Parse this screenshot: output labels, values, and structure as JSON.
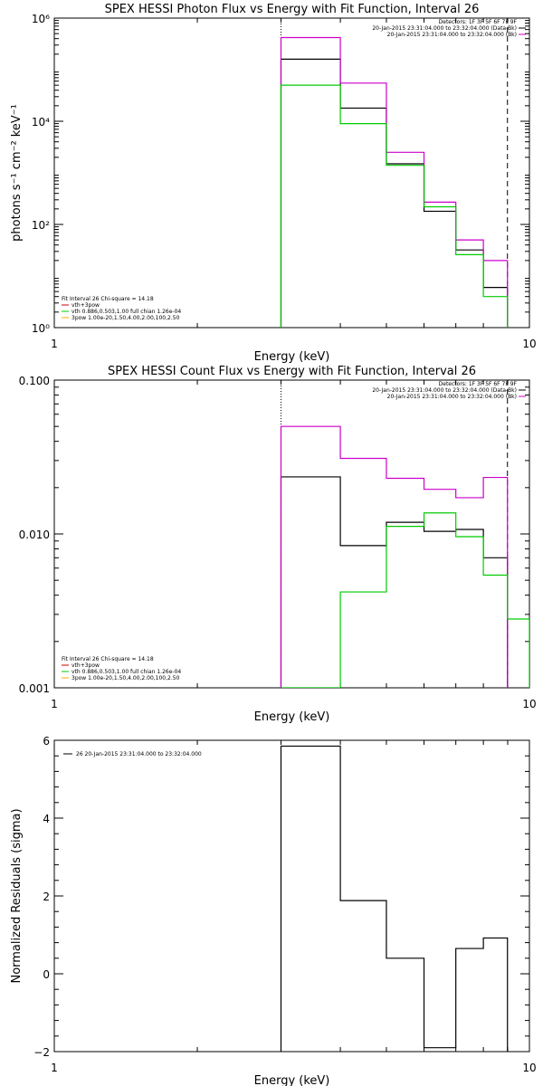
{
  "chart_data": [
    {
      "type": "line",
      "step": true,
      "title": "SPEX HESSI Photon Flux vs Energy with Fit Function, Interval 26",
      "xlabel": "Energy (keV)",
      "ylabel": "photons s⁻¹ cm⁻² keV⁻¹",
      "x_scale": "log",
      "y_scale": "log",
      "xlim": [
        1,
        10
      ],
      "ylim": [
        1,
        1000000
      ],
      "x_ticks": [
        {
          "v": 1,
          "label": "1"
        },
        {
          "v": 10,
          "label": "10"
        }
      ],
      "y_ticks": [
        {
          "v": 1,
          "label": "10⁰"
        },
        {
          "v": 100,
          "label": "10²"
        },
        {
          "v": 10000,
          "label": "10⁴"
        },
        {
          "v": 1000000,
          "label": "10⁶"
        }
      ],
      "vlines": [
        {
          "x": 3.0,
          "style": "dotted"
        },
        {
          "x": 8.99,
          "style": "dashed"
        }
      ],
      "info_lines": [
        "Detectors: 1F 3F 5F 6F 7F 9F",
        "20-Jan-2015 23:31:04.000 to 23:32:04.000 (Data-Bk)",
        "20-Jan-2015 23:31:04.000 to 23:32:04.000 (Bk)"
      ],
      "fit_info": [
        "Fit Interval 26   Chi-square = 14.18",
        "vth+3pow",
        "vth 0.886,0.503,1.00  full chian 1.26e-04",
        "3pow 1.00e-20,1.50,4.00,2.00,100,2.50"
      ],
      "series": [
        {
          "color": "#000000",
          "edges": [
            3.0,
            4.0,
            5.0,
            6.0,
            7.0,
            8.0,
            8.99
          ],
          "values": [
            160000,
            18000,
            1500,
            180,
            32,
            6
          ]
        },
        {
          "color": "#cc00cc",
          "edges": [
            3.0,
            4.0,
            5.0,
            6.0,
            7.0,
            8.0,
            8.99
          ],
          "values": [
            420000,
            55000,
            2500,
            270,
            50,
            20
          ]
        },
        {
          "color": "#00cc00",
          "edges": [
            3.0,
            4.0,
            5.0,
            6.0,
            7.0,
            8.0,
            8.99
          ],
          "values": [
            50000,
            9000,
            1400,
            220,
            26,
            4
          ]
        }
      ]
    },
    {
      "type": "line",
      "step": true,
      "title": "SPEX HESSI Count Flux vs Energy with Fit Function, Interval 26",
      "xlabel": "Energy (keV)",
      "ylabel": "",
      "x_scale": "log",
      "y_scale": "log",
      "xlim": [
        1,
        10
      ],
      "ylim": [
        0.001,
        0.1
      ],
      "x_ticks": [
        {
          "v": 1,
          "label": "1"
        },
        {
          "v": 10,
          "label": "10"
        }
      ],
      "y_ticks": [
        {
          "v": 0.001,
          "label": "0.001"
        },
        {
          "v": 0.01,
          "label": "0.010"
        },
        {
          "v": 0.1,
          "label": "0.100"
        }
      ],
      "vlines": [
        {
          "x": 3.0,
          "style": "dotted"
        },
        {
          "x": 8.99,
          "style": "dashed"
        }
      ],
      "info_lines": [
        "Detectors: 1F 3F 5F 6F 7F 9F",
        "20-Jan-2015 23:31:04.000 to 23:32:04.000 (Data-Bk)",
        "20-Jan-2015 23:31:04.000 to 23:32:04.000 (Bk)"
      ],
      "fit_info": [
        "Fit Interval 26   Chi-square = 14.18",
        "vth+3pow",
        "vth 0.886,0.503,1.00  full chian 1.26e-04",
        "3pow 1.00e-20,1.50,4.00,2.00,100,2.50"
      ],
      "series": [
        {
          "color": "#000000",
          "edges": [
            3.0,
            4.0,
            5.0,
            6.0,
            7.0,
            8.0,
            8.99
          ],
          "values": [
            0.0235,
            0.0084,
            0.0119,
            0.0104,
            0.0107,
            0.007
          ]
        },
        {
          "color": "#cc00cc",
          "edges": [
            3.0,
            4.0,
            5.0,
            6.0,
            7.0,
            8.0,
            8.99
          ],
          "values": [
            0.05,
            0.031,
            0.023,
            0.0195,
            0.0172,
            0.0233
          ]
        },
        {
          "color": "#00cc00",
          "edges": [
            3.0,
            4.0,
            5.0,
            6.0,
            7.0,
            8.0,
            8.99,
            10.0
          ],
          "values": [
            0.001,
            0.0042,
            0.0112,
            0.0137,
            0.0096,
            0.0054,
            0.0028
          ]
        }
      ]
    },
    {
      "type": "line",
      "step": true,
      "title": "",
      "xlabel": "Energy (keV)",
      "ylabel": "Normalized Residuals (sigma)",
      "x_scale": "log",
      "y_scale": "linear",
      "xlim": [
        1,
        10
      ],
      "ylim": [
        -2,
        6
      ],
      "x_ticks": [
        {
          "v": 1,
          "label": "1"
        },
        {
          "v": 10,
          "label": "10"
        }
      ],
      "y_ticks": [
        {
          "v": -2,
          "label": "−2"
        },
        {
          "v": 0,
          "label": "0"
        },
        {
          "v": 2,
          "label": "2"
        },
        {
          "v": 4,
          "label": "4"
        },
        {
          "v": 6,
          "label": "6"
        }
      ],
      "vlines": [],
      "info_lines": [],
      "fit_info": [],
      "legend_entry": "26  20-Jan-2015 23:31:04.000 to 23:32:04.000",
      "series": [
        {
          "color": "#000000",
          "edges": [
            3.0,
            4.0,
            5.0,
            6.0,
            7.0,
            8.0,
            8.99
          ],
          "values": [
            5.85,
            1.88,
            0.4,
            -1.9,
            0.65,
            0.92
          ]
        }
      ]
    }
  ]
}
